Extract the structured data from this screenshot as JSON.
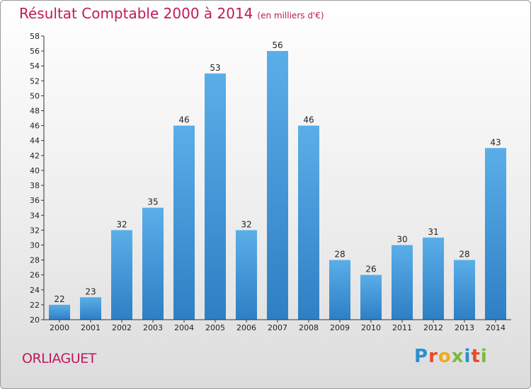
{
  "header": {
    "title": "Résultat Comptable 2000 à 2014",
    "subtitle": "(en milliers d'€)"
  },
  "footer": {
    "commune": "ORLIAGUET"
  },
  "logo": {
    "letters": [
      {
        "ch": "P",
        "color": "#2a8fd0"
      },
      {
        "ch": "r",
        "color": "#e64b2d"
      },
      {
        "ch": "o",
        "color": "#f2a91d"
      },
      {
        "ch": "x",
        "color": "#7cb93b"
      },
      {
        "ch": "i",
        "color": "#2a8fd0"
      },
      {
        "ch": "t",
        "color": "#e64b2d"
      },
      {
        "ch": "i",
        "color": "#7cb93b"
      }
    ]
  },
  "chart_data": {
    "type": "bar",
    "categories": [
      "2000",
      "2001",
      "2002",
      "2003",
      "2004",
      "2005",
      "2006",
      "2007",
      "2008",
      "2009",
      "2010",
      "2011",
      "2012",
      "2013",
      "2014"
    ],
    "values": [
      22,
      23,
      32,
      35,
      46,
      53,
      32,
      56,
      46,
      28,
      26,
      30,
      31,
      28,
      43
    ],
    "title": "Résultat Comptable 2000 à 2014",
    "xlabel": "",
    "ylabel": "",
    "ylim": [
      20,
      58
    ],
    "ytick_step": 2,
    "grid": false,
    "colors": {
      "bar_light": "#5aaee8",
      "bar_dark": "#2e7fc4",
      "axis": "#333333"
    }
  }
}
